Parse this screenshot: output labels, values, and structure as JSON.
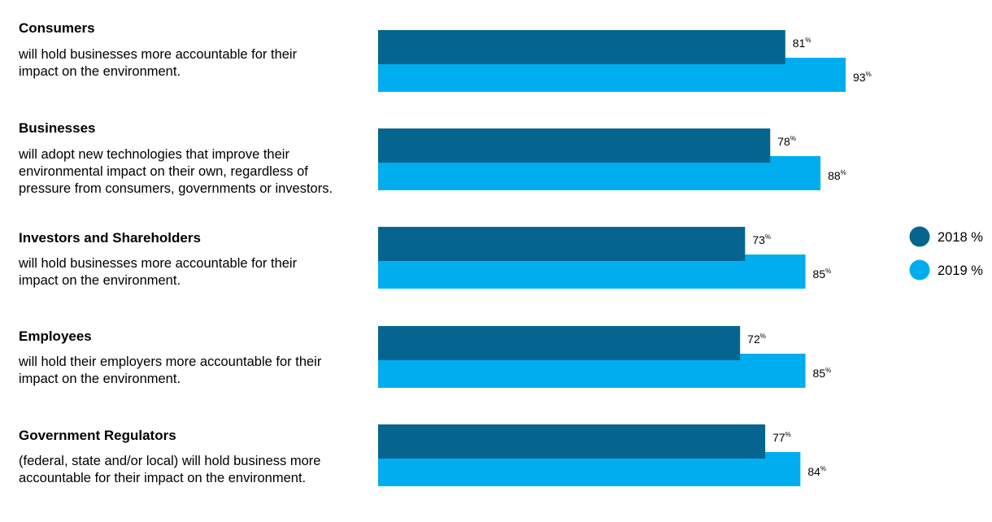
{
  "chart_data": {
    "type": "bar",
    "orientation": "horizontal",
    "xlim": [
      0,
      100
    ],
    "grid": false,
    "legend_position": "right",
    "unit_suffix": "%",
    "series": [
      {
        "name": "2018 %",
        "color": "#05658f",
        "values": [
          81,
          78,
          73,
          72,
          77
        ]
      },
      {
        "name": "2019 %",
        "color": "#00aeef",
        "values": [
          93,
          88,
          85,
          85,
          84
        ]
      }
    ],
    "categories": [
      {
        "title": "Consumers",
        "description": [
          "will hold businesses more accountable for their",
          "impact on the environment."
        ]
      },
      {
        "title": "Businesses",
        "description": [
          "will adopt new technologies that improve their",
          "environmental impact on their own, regardless of",
          "pressure from consumers, governments or investors."
        ]
      },
      {
        "title": "Investors and Shareholders",
        "description": [
          "will hold businesses more accountable for their",
          "impact on the environment."
        ]
      },
      {
        "title": "Employees",
        "description": [
          "will hold their employers more accountable for their",
          "impact on the environment."
        ]
      },
      {
        "title": "Government Regulators",
        "description": [
          "(federal, state and/or local) will hold business more",
          "accountable for their impact on the environment."
        ]
      }
    ]
  }
}
